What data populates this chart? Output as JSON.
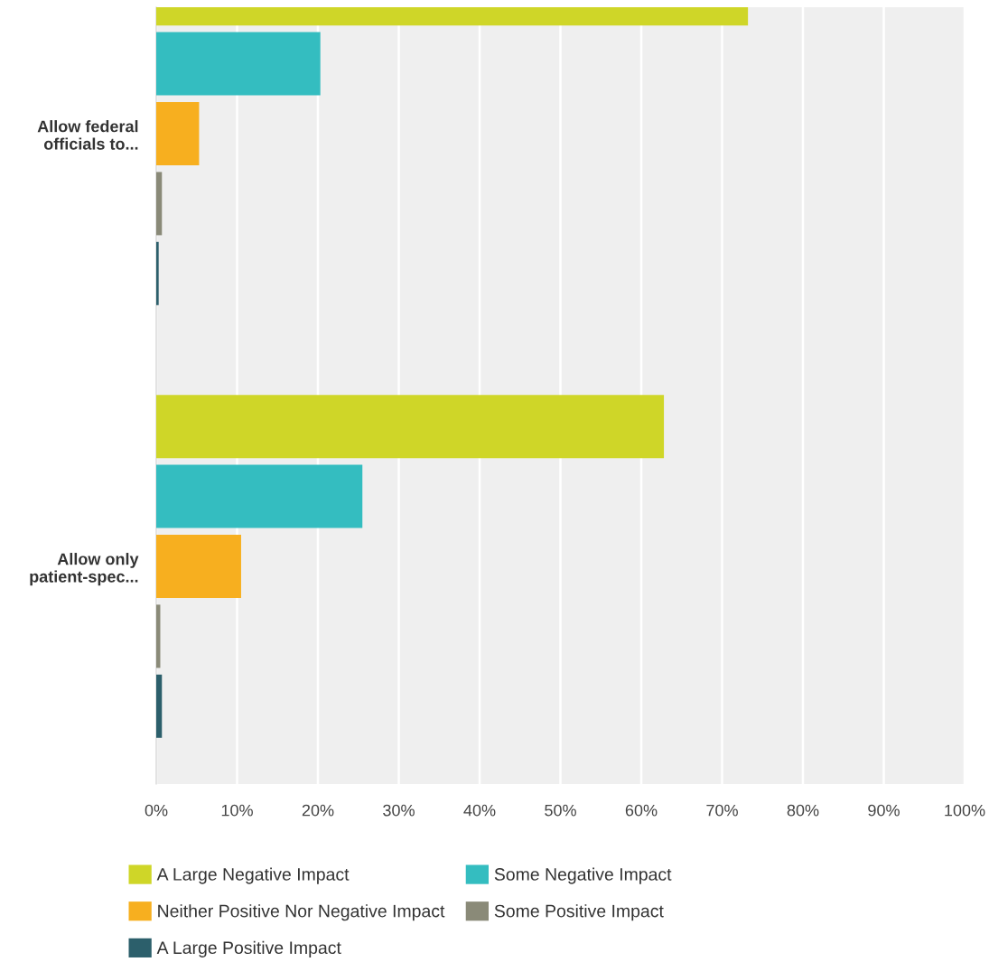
{
  "chart_data": {
    "type": "bar",
    "orientation": "horizontal",
    "categories": [
      "Allow federal\nofficials to...",
      "Allow only\npatient-spec..."
    ],
    "series": [
      {
        "name": "A Large Negative Impact",
        "color": "#cfd628",
        "values": [
          73.2,
          62.8
        ]
      },
      {
        "name": "Some Negative Impact",
        "color": "#34bdc0",
        "values": [
          20.3,
          25.5
        ]
      },
      {
        "name": "Neither Positive Nor Negative Impact",
        "color": "#f7af1f",
        "values": [
          5.3,
          10.5
        ]
      },
      {
        "name": "Some Positive Impact",
        "color": "#8a8a78",
        "values": [
          0.7,
          0.5
        ]
      },
      {
        "name": "A Large Positive Impact",
        "color": "#2c5f6b",
        "values": [
          0.3,
          0.7
        ]
      }
    ],
    "xlim": [
      0,
      100
    ],
    "xticks": [
      {
        "value": 0,
        "label": "0%"
      },
      {
        "value": 10,
        "label": "10%"
      },
      {
        "value": 20,
        "label": "20%"
      },
      {
        "value": 30,
        "label": "30%"
      },
      {
        "value": 40,
        "label": "40%"
      },
      {
        "value": 50,
        "label": "50%"
      },
      {
        "value": 60,
        "label": "60%"
      },
      {
        "value": 70,
        "label": "70%"
      },
      {
        "value": 80,
        "label": "80%"
      },
      {
        "value": 90,
        "label": "90%"
      },
      {
        "value": 100,
        "label": "100%"
      }
    ],
    "grid": "x",
    "legend": "bottom"
  }
}
